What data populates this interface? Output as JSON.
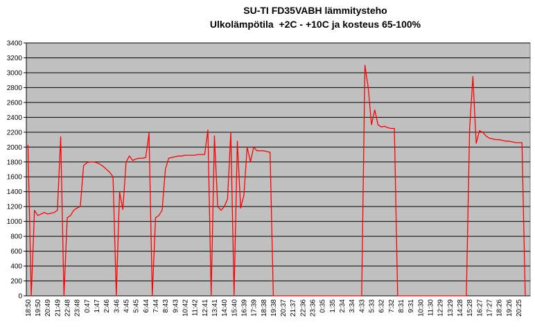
{
  "chart_data": {
    "type": "line",
    "title": "SU-TI FD35VABH lämmitysteho",
    "subtitle": "Ulkolämpötila  +2C - +10C ja kosteus 65-100%",
    "color": "#ff0000",
    "plot_background": "#c0c0c0",
    "grid": true,
    "ylim": [
      0,
      3400
    ],
    "yticks": [
      0,
      200,
      400,
      600,
      800,
      1000,
      1200,
      1400,
      1600,
      1800,
      2000,
      2200,
      2400,
      2600,
      2800,
      3000,
      3200,
      3400
    ],
    "categories": [
      "18:50",
      null,
      null,
      "19:50",
      null,
      null,
      "20:49",
      null,
      null,
      "21:49",
      null,
      null,
      "22:48",
      null,
      null,
      "23:48",
      null,
      null,
      "0:47",
      null,
      null,
      "1:47",
      null,
      null,
      "2:46",
      null,
      null,
      "3:46",
      null,
      null,
      "4:45",
      null,
      null,
      "5:45",
      null,
      null,
      "6:44",
      null,
      null,
      "7:44",
      null,
      null,
      "8:43",
      null,
      null,
      "9:43",
      null,
      null,
      "10:42",
      null,
      null,
      "11:42",
      null,
      null,
      "12:41",
      null,
      null,
      "13:41",
      null,
      null,
      "14:40",
      null,
      null,
      "15:40",
      null,
      null,
      "16:39",
      null,
      null,
      "17:39",
      null,
      null,
      "18:38",
      null,
      null,
      "19:38",
      null,
      null,
      "20:37",
      null,
      null,
      "21:37",
      null,
      null,
      "22:36",
      null,
      null,
      "23:36",
      null,
      null,
      "0:35",
      null,
      null,
      "1:35",
      null,
      null,
      "2:34",
      null,
      null,
      "3:34",
      null,
      null,
      "4:33",
      null,
      null,
      "5:33",
      null,
      null,
      "6:32",
      null,
      null,
      "7:32",
      null,
      null,
      "8:31",
      null,
      null,
      "9:31",
      null,
      null,
      "10:30",
      null,
      null,
      "11:30",
      null,
      null,
      "12:29",
      null,
      null,
      "13:29",
      null,
      null,
      "14:28",
      null,
      null,
      "15:28",
      null,
      null,
      "16:27",
      null,
      null,
      "17:27",
      null,
      null,
      "18:26",
      null,
      null,
      "19:26",
      null,
      null,
      "20:25",
      null,
      null,
      null
    ],
    "values": [
      2030,
      0,
      1150,
      1080,
      1100,
      1120,
      1100,
      1110,
      1120,
      1150,
      2140,
      0,
      1050,
      1080,
      1150,
      1180,
      1200,
      1750,
      1790,
      1800,
      1800,
      1790,
      1770,
      1740,
      1700,
      1660,
      1600,
      0,
      1400,
      1160,
      1800,
      1880,
      1820,
      1840,
      1850,
      1850,
      1860,
      2190,
      0,
      1050,
      1080,
      1150,
      1700,
      1850,
      1860,
      1870,
      1880,
      1880,
      1890,
      1890,
      1890,
      1890,
      1900,
      1900,
      1900,
      2230,
      0,
      2150,
      1200,
      1150,
      1200,
      1300,
      2200,
      0,
      2080,
      1180,
      1350,
      2000,
      1800,
      2000,
      1950,
      1950,
      1950,
      1940,
      1930,
      0,
      0,
      0,
      0,
      0,
      0,
      0,
      0,
      0,
      0,
      0,
      0,
      0,
      0,
      0,
      0,
      0,
      0,
      0,
      0,
      0,
      0,
      0,
      0,
      0,
      0,
      0,
      0,
      3100,
      2800,
      2300,
      2500,
      2300,
      2270,
      2280,
      2260,
      2250,
      2250,
      0,
      0,
      0,
      0,
      0,
      0,
      0,
      0,
      0,
      0,
      0,
      0,
      0,
      0,
      0,
      0,
      0,
      0,
      0,
      0,
      0,
      0,
      2250,
      2950,
      2050,
      2220,
      2200,
      2150,
      2120,
      2110,
      2100,
      2100,
      2090,
      2080,
      2080,
      2070,
      2060,
      2060,
      2060,
      0,
      null
    ]
  }
}
